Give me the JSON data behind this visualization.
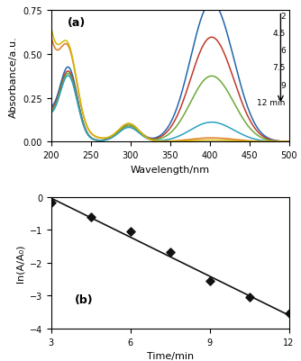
{
  "panel_a": {
    "label": "(a)",
    "xlabel": "Wavelength/nm",
    "ylabel": "Absorbance/a.u.",
    "xlim": [
      200,
      500
    ],
    "ylim": [
      0,
      0.75
    ],
    "yticks": [
      0,
      0.25,
      0.5,
      0.75
    ],
    "legend_times": [
      "2",
      "4.5",
      "6",
      "7.5",
      "9",
      "12 min"
    ],
    "curves": [
      {
        "color": "#2166ac",
        "p1h": 0.38,
        "p2h": 0.1,
        "p3h": 0.755,
        "edge": 0.15
      },
      {
        "color": "#c0392b",
        "p1h": 0.36,
        "p2h": 0.09,
        "p3h": 0.565,
        "edge": 0.14
      },
      {
        "color": "#6aaa3a",
        "p1h": 0.35,
        "p2h": 0.09,
        "p3h": 0.355,
        "edge": 0.13
      },
      {
        "color": "#2aa0c0",
        "p1h": 0.34,
        "p2h": 0.08,
        "p3h": 0.105,
        "edge": 0.12
      },
      {
        "color": "#e07b20",
        "p1h": 0.38,
        "p2h": 0.1,
        "p3h": 0.02,
        "edge": 0.55
      },
      {
        "color": "#d4b800",
        "p1h": 0.38,
        "p2h": 0.1,
        "p3h": 0.008,
        "edge": 0.6
      }
    ]
  },
  "panel_b": {
    "label": "(b)",
    "xlabel": "Time/min",
    "ylabel": "ln(A/A₀)",
    "xlim": [
      3,
      12
    ],
    "ylim": [
      -4,
      0
    ],
    "xticks": [
      3,
      6,
      9,
      12
    ],
    "yticks": [
      -4,
      -3,
      -2,
      -1,
      0
    ],
    "scatter_x": [
      3.0,
      4.5,
      6.0,
      7.5,
      9.0,
      10.5,
      12.0
    ],
    "scatter_y": [
      -0.18,
      -0.62,
      -1.05,
      -1.68,
      -2.55,
      -3.05,
      -3.55
    ],
    "fit_x": [
      3.0,
      12.0
    ],
    "fit_y": [
      -0.04,
      -3.6
    ],
    "marker_color": "#111111",
    "line_color": "#111111"
  }
}
